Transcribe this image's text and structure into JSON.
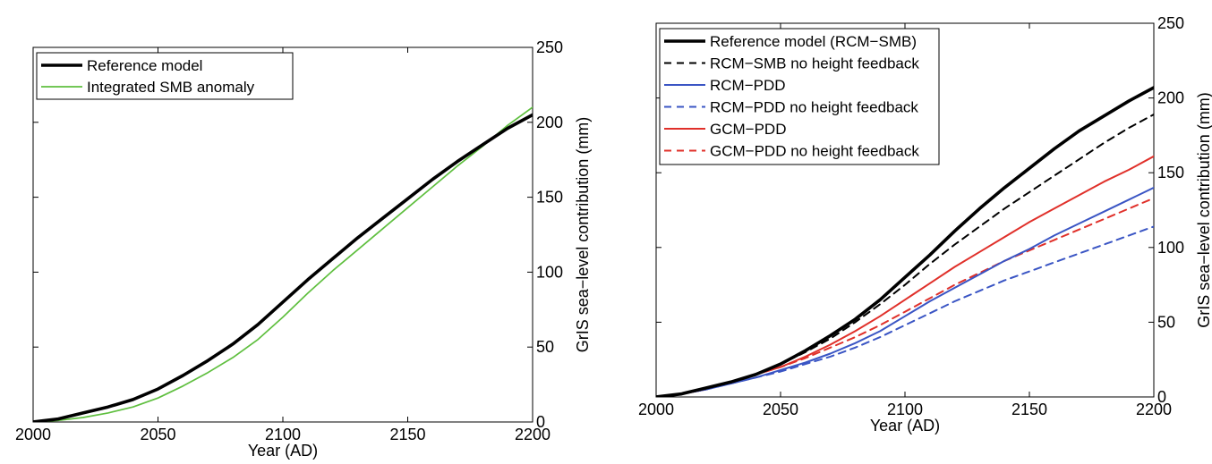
{
  "chart_data": [
    {
      "type": "line",
      "xlabel": "Year (AD)",
      "ylabel": "GrIS sea−level contribution (mm)",
      "xlim": [
        2000,
        2200
      ],
      "ylim": [
        0,
        250
      ],
      "xticks": [
        2000,
        2050,
        2100,
        2150,
        2200
      ],
      "yticks": [
        0,
        50,
        100,
        150,
        200,
        250
      ],
      "y_axis_side": "right",
      "grid": false,
      "legend_position": "top-left",
      "series": [
        {
          "name": "Reference model",
          "color": "#000000",
          "style": "solid",
          "width": "thick",
          "x": [
            2000,
            2010,
            2020,
            2030,
            2040,
            2050,
            2060,
            2070,
            2080,
            2090,
            2100,
            2110,
            2120,
            2130,
            2140,
            2150,
            2160,
            2170,
            2180,
            2190,
            2200
          ],
          "y": [
            0,
            2,
            6,
            10,
            15,
            22,
            31,
            41,
            52,
            65,
            80,
            95,
            109,
            123,
            136,
            149,
            162,
            174,
            185,
            196,
            205
          ]
        },
        {
          "name": "Integrated SMB anomaly",
          "color": "#5fbf3f",
          "style": "solid",
          "width": "thin",
          "x": [
            2000,
            2010,
            2020,
            2030,
            2040,
            2050,
            2060,
            2070,
            2080,
            2090,
            2100,
            2110,
            2120,
            2130,
            2140,
            2150,
            2160,
            2170,
            2180,
            2190,
            2200
          ],
          "y": [
            0,
            1,
            3,
            6,
            10,
            16,
            24,
            33,
            43,
            55,
            70,
            86,
            101,
            115,
            129,
            143,
            157,
            171,
            184,
            198,
            210
          ]
        }
      ]
    },
    {
      "type": "line",
      "xlabel": "Year (AD)",
      "ylabel": "GrIS sea−level contribution (mm)",
      "xlim": [
        2000,
        2200
      ],
      "ylim": [
        0,
        250
      ],
      "xticks": [
        2000,
        2050,
        2100,
        2150,
        2200
      ],
      "yticks": [
        0,
        50,
        100,
        150,
        200,
        250
      ],
      "y_axis_side": "right",
      "grid": false,
      "legend_position": "top-left",
      "series": [
        {
          "name": "Reference model (RCM−SMB)",
          "color": "#000000",
          "style": "solid",
          "width": "thick",
          "x": [
            2000,
            2010,
            2020,
            2030,
            2040,
            2050,
            2060,
            2070,
            2080,
            2090,
            2100,
            2110,
            2120,
            2130,
            2140,
            2150,
            2160,
            2170,
            2180,
            2190,
            2200
          ],
          "y": [
            0,
            2,
            6,
            10,
            15,
            22,
            31,
            41,
            52,
            65,
            80,
            95,
            111,
            126,
            140,
            153,
            166,
            178,
            188,
            198,
            207
          ]
        },
        {
          "name": "RCM−SMB no height feedback",
          "color": "#000000",
          "style": "dashed",
          "width": "normal",
          "x": [
            2000,
            2010,
            2020,
            2030,
            2040,
            2050,
            2060,
            2070,
            2080,
            2090,
            2100,
            2110,
            2120,
            2130,
            2140,
            2150,
            2160,
            2170,
            2180,
            2190,
            2200
          ],
          "y": [
            0,
            2,
            6,
            10,
            15,
            22,
            30,
            39,
            50,
            62,
            75,
            89,
            102,
            114,
            126,
            137,
            148,
            159,
            170,
            180,
            189
          ]
        },
        {
          "name": "RCM−PDD",
          "color": "#3a55c4",
          "style": "solid",
          "width": "normal",
          "x": [
            2000,
            2010,
            2020,
            2030,
            2040,
            2050,
            2060,
            2070,
            2080,
            2090,
            2100,
            2110,
            2120,
            2130,
            2140,
            2150,
            2160,
            2170,
            2180,
            2190,
            2200
          ],
          "y": [
            0,
            2,
            5,
            9,
            13,
            18,
            23,
            29,
            36,
            44,
            54,
            64,
            73,
            82,
            91,
            99,
            108,
            116,
            124,
            132,
            140
          ]
        },
        {
          "name": "RCM−PDD no height feedback",
          "color": "#3a55c4",
          "style": "dashed",
          "width": "normal",
          "x": [
            2000,
            2010,
            2020,
            2030,
            2040,
            2050,
            2060,
            2070,
            2080,
            2090,
            2100,
            2110,
            2120,
            2130,
            2140,
            2150,
            2160,
            2170,
            2180,
            2190,
            2200
          ],
          "y": [
            0,
            2,
            5,
            9,
            13,
            17,
            22,
            27,
            33,
            40,
            48,
            56,
            64,
            71,
            78,
            84,
            90,
            96,
            102,
            108,
            114
          ]
        },
        {
          "name": "GCM−PDD",
          "color": "#e0302a",
          "style": "solid",
          "width": "normal",
          "x": [
            2000,
            2010,
            2020,
            2030,
            2040,
            2050,
            2060,
            2070,
            2080,
            2090,
            2100,
            2110,
            2120,
            2130,
            2140,
            2150,
            2160,
            2170,
            2180,
            2190,
            2200
          ],
          "y": [
            0,
            2,
            5,
            10,
            15,
            20,
            27,
            35,
            44,
            54,
            65,
            76,
            87,
            97,
            107,
            117,
            126,
            135,
            144,
            152,
            161
          ]
        },
        {
          "name": "GCM−PDD no height feedback",
          "color": "#e0302a",
          "style": "dashed",
          "width": "normal",
          "x": [
            2000,
            2010,
            2020,
            2030,
            2040,
            2050,
            2060,
            2070,
            2080,
            2090,
            2100,
            2110,
            2120,
            2130,
            2140,
            2150,
            2160,
            2170,
            2180,
            2190,
            2200
          ],
          "y": [
            0,
            2,
            5,
            10,
            15,
            20,
            26,
            33,
            40,
            48,
            57,
            66,
            75,
            83,
            91,
            98,
            105,
            112,
            119,
            126,
            133
          ]
        }
      ]
    }
  ]
}
